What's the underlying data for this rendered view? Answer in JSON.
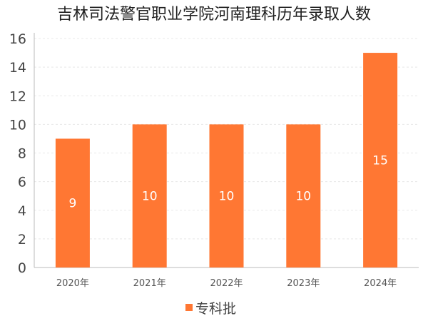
{
  "chart_data": {
    "type": "bar",
    "title": "吉林司法警官职业学院河南理科历年录取人数",
    "categories": [
      "2020年",
      "2021年",
      "2022年",
      "2023年",
      "2024年"
    ],
    "series": [
      {
        "name": "专科批",
        "values": [
          9,
          10,
          10,
          10,
          15
        ]
      }
    ],
    "ylim": [
      0,
      16
    ],
    "yticks": [
      0,
      2,
      4,
      6,
      8,
      10,
      12,
      14,
      16
    ],
    "grid": true,
    "legend": "bottom",
    "colors": {
      "bar": "#ff7733",
      "grid": "#e8e8e8",
      "axis": "#bbbbbb"
    }
  }
}
